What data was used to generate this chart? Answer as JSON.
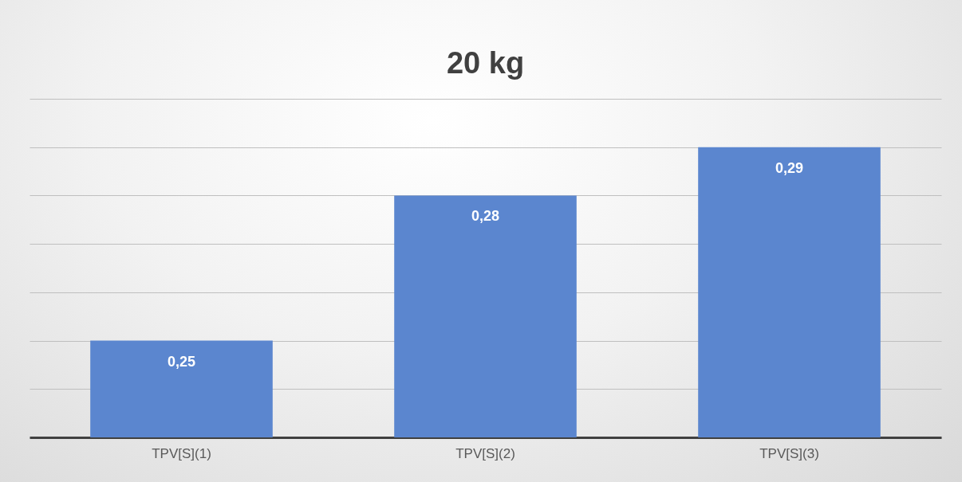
{
  "chart_data": {
    "type": "bar",
    "title": "20 kg",
    "categories": [
      "TPV[S](1)",
      "TPV[S](2)",
      "TPV[S](3)"
    ],
    "values": [
      0.25,
      0.28,
      0.29
    ],
    "value_labels": [
      "0,25",
      "0,28",
      "0,29"
    ],
    "color": "#5b86cf",
    "ylim": [
      0.23,
      0.3
    ],
    "yticks": [
      {
        "value": 0.23,
        "label": null
      },
      {
        "value": 0.24,
        "label": null
      },
      {
        "value": 0.25,
        "label": null
      },
      {
        "value": 0.26,
        "label": null
      },
      {
        "value": 0.27,
        "label": null
      },
      {
        "value": 0.28,
        "label": null
      },
      {
        "value": 0.29,
        "label": null
      },
      {
        "value": 0.3,
        "label": null
      }
    ],
    "grid": "y",
    "tick_labels": "x"
  }
}
